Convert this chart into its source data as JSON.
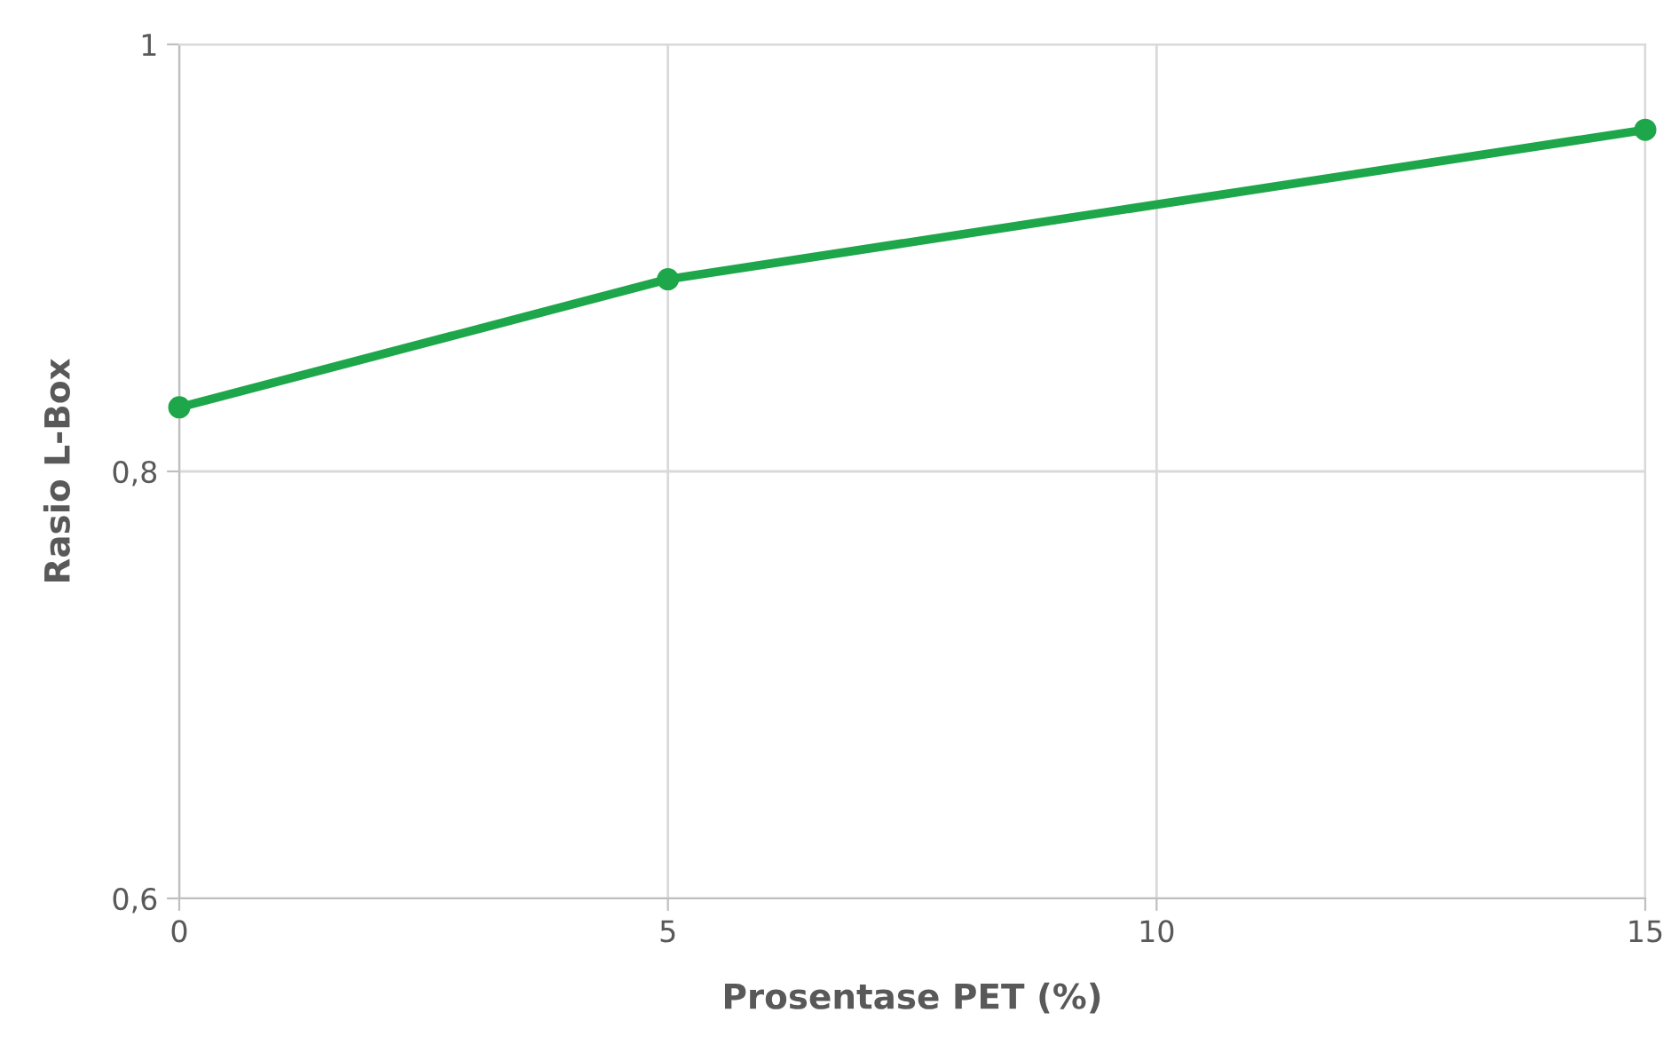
{
  "chart_data": {
    "type": "line",
    "xlabel": "Prosentase PET (%)",
    "ylabel": "Rasio L-Box",
    "x": [
      0,
      5,
      15
    ],
    "series": [
      {
        "color": "#1ea64a",
        "values": [
          0.83,
          0.89,
          0.96
        ]
      }
    ],
    "xlim": [
      0,
      15
    ],
    "xticks": [
      0,
      5,
      10,
      15
    ],
    "ylim": [
      0.6,
      1
    ],
    "yticks": [
      {
        "value": 0.6,
        "label": "0,6"
      },
      {
        "value": 0.8,
        "label": "0,8"
      },
      1
    ],
    "grid": true,
    "marker": "circle",
    "line_style": "solid"
  }
}
